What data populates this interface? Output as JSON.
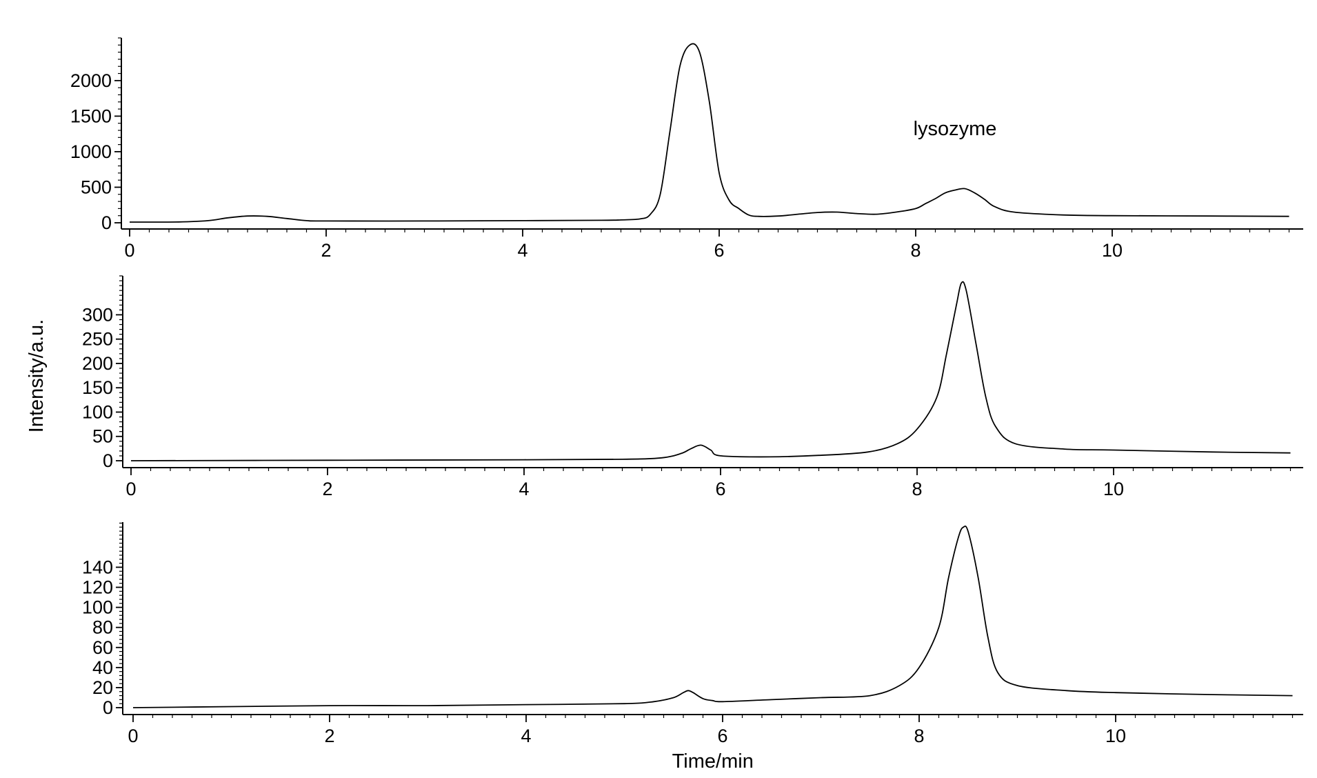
{
  "chart_data": [
    {
      "type": "line",
      "panel": "top",
      "xlim": [
        0,
        11.8
      ],
      "ylim": [
        -60,
        2600
      ],
      "x_ticks": [
        0,
        2,
        4,
        6,
        8,
        10
      ],
      "y_ticks": [
        0,
        500,
        1000,
        1500,
        2000
      ],
      "annotations": [
        {
          "text": "lysozyme",
          "x": 8.4,
          "y": 1230
        }
      ],
      "series": [
        {
          "x": [
            0,
            0.5,
            0.8,
            1.0,
            1.2,
            1.4,
            1.6,
            1.8,
            2.0,
            3.0,
            4.0,
            4.8,
            5.0,
            5.2,
            5.3,
            5.4,
            5.5,
            5.6,
            5.7,
            5.8,
            5.9,
            6.0,
            6.1,
            6.2,
            6.3,
            6.4,
            6.6,
            6.8,
            7.0,
            7.2,
            7.4,
            7.6,
            7.8,
            8.0,
            8.1,
            8.2,
            8.3,
            8.4,
            8.5,
            8.6,
            8.7,
            8.8,
            9.0,
            9.5,
            10.0,
            11.0,
            11.8
          ],
          "y": [
            10,
            12,
            30,
            70,
            95,
            90,
            60,
            30,
            25,
            25,
            30,
            35,
            40,
            55,
            120,
            400,
            1300,
            2200,
            2500,
            2400,
            1700,
            700,
            320,
            200,
            110,
            90,
            95,
            120,
            145,
            150,
            130,
            120,
            150,
            200,
            270,
            340,
            420,
            460,
            480,
            420,
            330,
            230,
            150,
            110,
            100,
            95,
            90
          ]
        }
      ]
    },
    {
      "type": "line",
      "panel": "middle",
      "ylabel": "Intensity/a.u.",
      "xlim": [
        0,
        11.8
      ],
      "ylim": [
        -10,
        380
      ],
      "x_ticks": [
        0,
        2,
        4,
        6,
        8,
        10
      ],
      "y_ticks": [
        0,
        50,
        100,
        150,
        200,
        250,
        300
      ],
      "series": [
        {
          "x": [
            0,
            2,
            4,
            5.0,
            5.4,
            5.6,
            5.7,
            5.8,
            5.9,
            6.0,
            6.5,
            7.0,
            7.5,
            7.8,
            8.0,
            8.2,
            8.3,
            8.4,
            8.45,
            8.5,
            8.6,
            8.7,
            8.8,
            9.0,
            9.5,
            10.0,
            11.0,
            11.8
          ],
          "y": [
            0,
            1,
            2,
            3,
            6,
            15,
            25,
            32,
            22,
            10,
            8,
            11,
            18,
            35,
            65,
            130,
            220,
            320,
            365,
            350,
            240,
            130,
            70,
            35,
            24,
            22,
            18,
            16
          ]
        }
      ]
    },
    {
      "type": "line",
      "panel": "bottom",
      "xlabel": "Time/min",
      "xlim": [
        0,
        11.8
      ],
      "ylim": [
        -5,
        185
      ],
      "x_ticks": [
        0,
        2,
        4,
        6,
        8,
        10
      ],
      "y_ticks": [
        0,
        20,
        40,
        60,
        80,
        100,
        120,
        140
      ],
      "series": [
        {
          "x": [
            0,
            1,
            2,
            3,
            4,
            5.0,
            5.3,
            5.5,
            5.6,
            5.65,
            5.7,
            5.8,
            5.9,
            6.0,
            6.5,
            7.0,
            7.5,
            7.8,
            8.0,
            8.2,
            8.3,
            8.4,
            8.45,
            8.5,
            8.6,
            8.7,
            8.8,
            9.0,
            9.5,
            10.0,
            11.0,
            11.8
          ],
          "y": [
            0,
            1,
            2,
            2,
            3,
            4,
            6,
            10,
            15,
            17,
            15,
            9,
            7,
            6,
            8,
            10,
            12,
            22,
            40,
            80,
            130,
            170,
            180,
            175,
            130,
            70,
            35,
            22,
            17,
            15,
            13,
            12
          ]
        }
      ]
    }
  ]
}
